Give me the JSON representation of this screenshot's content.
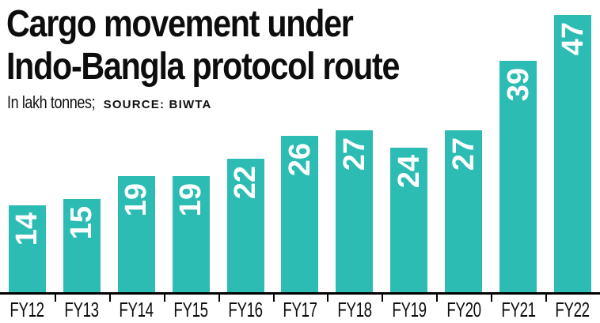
{
  "chart_data": {
    "type": "bar",
    "title": "Cargo movement under Indo-Bangla protocol route",
    "title_lines": [
      "Cargo movement under",
      "Indo-Bangla protocol route"
    ],
    "subtitle_units": "In lakh tonnes;",
    "source_label": "SOURCE: BIWTA",
    "categories": [
      "FY12",
      "FY13",
      "FY14",
      "FY15",
      "FY16",
      "FY17",
      "FY18",
      "FY19",
      "FY20",
      "FY21",
      "FY22"
    ],
    "values": [
      14,
      15,
      19,
      19,
      22,
      26,
      27,
      24,
      27,
      39,
      47
    ],
    "xlabel": "",
    "ylabel": "",
    "ylim": [
      0,
      47
    ],
    "grid": false,
    "legend": "none",
    "value_labels": "rotated 90deg counterclockwise, white, inside bar near top",
    "bar_color": "#2cbcb4",
    "value_label_color": "#ffffff",
    "axis_color": "#000000",
    "text_color": "#0d0d0d",
    "background_color": "#ffffff"
  }
}
